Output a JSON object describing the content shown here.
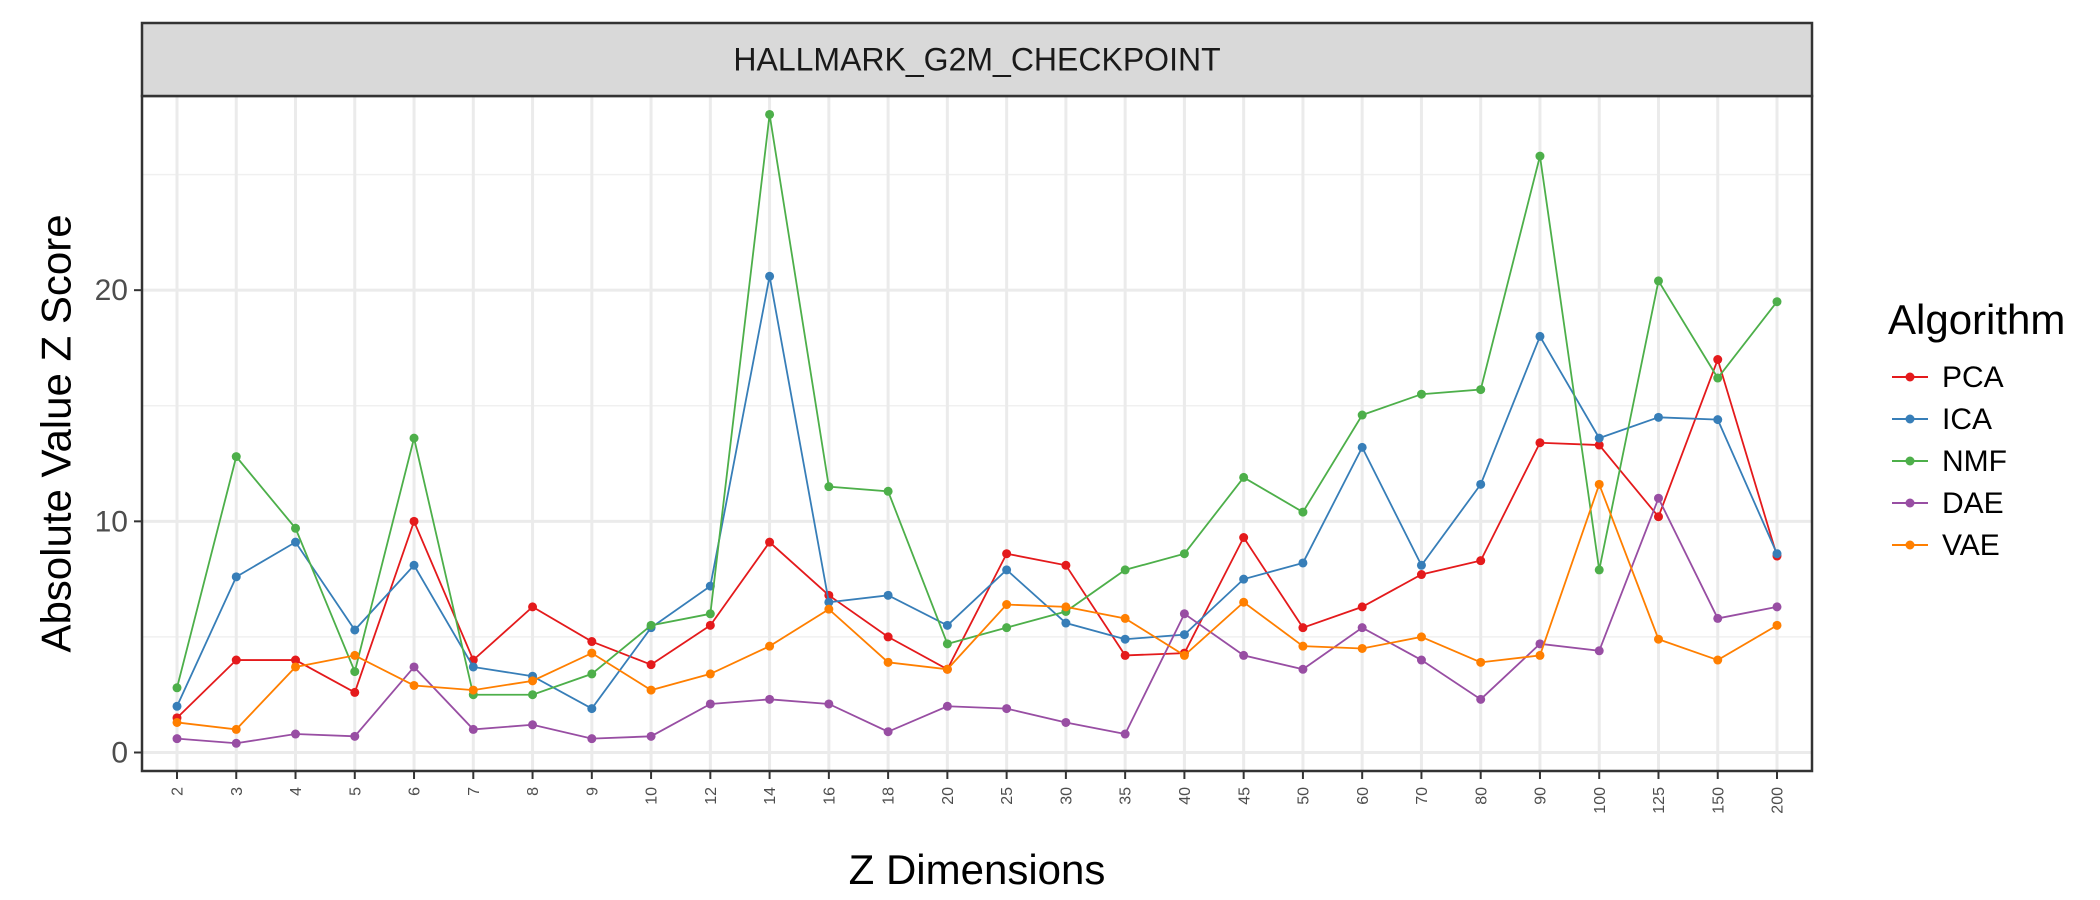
{
  "chart_data": {
    "type": "line",
    "title": "HALLMARK_G2M_CHECKPOINT",
    "xlabel": "Z Dimensions",
    "ylabel": "Absolute Value Z Score",
    "categories": [
      "2",
      "3",
      "4",
      "5",
      "6",
      "7",
      "8",
      "9",
      "10",
      "12",
      "14",
      "16",
      "18",
      "20",
      "25",
      "30",
      "35",
      "40",
      "45",
      "50",
      "60",
      "70",
      "80",
      "90",
      "100",
      "125",
      "150",
      "200"
    ],
    "ylim": [
      -0.8,
      28.4
    ],
    "yticks": [
      0,
      10,
      20
    ],
    "ytick_labels": [
      "0",
      "10",
      "20"
    ],
    "grid": true,
    "legend_title": "Algorithm",
    "legend_position": "right",
    "series": [
      {
        "name": "PCA",
        "color": "#e41a1c",
        "values": [
          1.5,
          4.0,
          4.0,
          2.6,
          10.0,
          4.0,
          6.3,
          4.8,
          3.8,
          5.5,
          9.1,
          6.8,
          5.0,
          3.6,
          8.6,
          8.1,
          4.2,
          4.3,
          9.3,
          5.4,
          6.3,
          7.7,
          8.3,
          13.4,
          13.3,
          10.2,
          17.0,
          8.5
        ]
      },
      {
        "name": "ICA",
        "color": "#377eb8",
        "values": [
          2.0,
          7.6,
          9.1,
          5.3,
          8.1,
          3.7,
          3.3,
          1.9,
          5.4,
          7.2,
          20.6,
          6.5,
          6.8,
          5.5,
          7.9,
          5.6,
          4.9,
          5.1,
          7.5,
          8.2,
          13.2,
          8.1,
          11.6,
          18.0,
          13.6,
          14.5,
          14.4,
          8.6
        ]
      },
      {
        "name": "NMF",
        "color": "#4daf4a",
        "values": [
          2.8,
          12.8,
          9.7,
          3.5,
          13.6,
          2.5,
          2.5,
          3.4,
          5.5,
          6.0,
          27.6,
          11.5,
          11.3,
          4.7,
          5.4,
          6.1,
          7.9,
          8.6,
          11.9,
          10.4,
          14.6,
          15.5,
          15.7,
          25.8,
          7.9,
          20.4,
          16.2,
          19.5
        ]
      },
      {
        "name": "DAE",
        "color": "#984ea3",
        "values": [
          0.6,
          0.4,
          0.8,
          0.7,
          3.7,
          1.0,
          1.2,
          0.6,
          0.7,
          2.1,
          2.3,
          2.1,
          0.9,
          2.0,
          1.9,
          1.3,
          0.8,
          6.0,
          4.2,
          3.6,
          5.4,
          4.0,
          2.3,
          4.7,
          4.4,
          11.0,
          5.8,
          6.3
        ]
      },
      {
        "name": "VAE",
        "color": "#ff7f00",
        "values": [
          1.3,
          1.0,
          3.7,
          4.2,
          2.9,
          2.7,
          3.1,
          4.3,
          2.7,
          3.4,
          4.6,
          6.2,
          3.9,
          3.6,
          6.4,
          6.3,
          5.8,
          4.2,
          6.5,
          4.6,
          4.5,
          5.0,
          3.9,
          4.2,
          11.6,
          4.9,
          4.0,
          5.5
        ]
      }
    ]
  }
}
